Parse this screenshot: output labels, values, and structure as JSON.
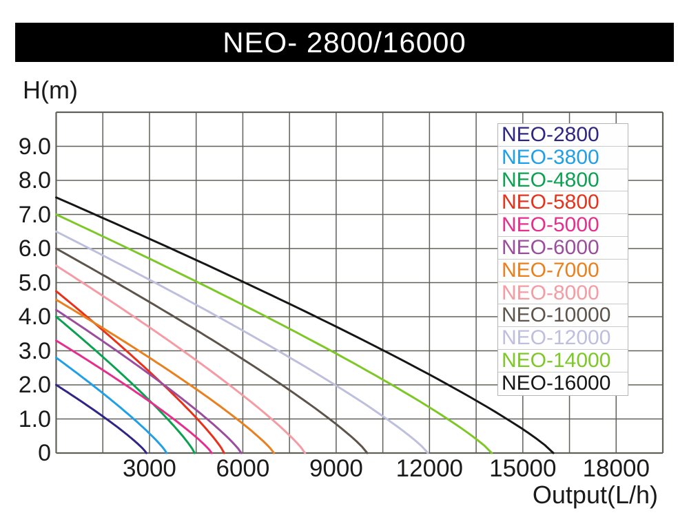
{
  "title": "NEO- 2800/16000",
  "chart_data": {
    "type": "line",
    "title": "NEO- 2800/16000",
    "xlabel": "Output(L/h)",
    "ylabel": "H(m)",
    "xlim": [
      0,
      19500
    ],
    "ylim": [
      0,
      10
    ],
    "grid": true,
    "x_grid_interval": 1500,
    "y_grid_interval": 1,
    "x_ticks": [
      {
        "value": 3000,
        "label": "3000"
      },
      {
        "value": 6000,
        "label": "6000"
      },
      {
        "value": 9000,
        "label": "9000"
      },
      {
        "value": 12000,
        "label": "12000"
      },
      {
        "value": 15000,
        "label": "15000"
      },
      {
        "value": 18000,
        "label": "18000"
      }
    ],
    "y_ticks": [
      {
        "value": 9,
        "label": "9.0"
      },
      {
        "value": 8,
        "label": "8.0"
      },
      {
        "value": 7,
        "label": "7.0"
      },
      {
        "value": 6,
        "label": "6.0"
      },
      {
        "value": 5,
        "label": "5.0"
      },
      {
        "value": 4,
        "label": "4.0"
      },
      {
        "value": 3,
        "label": "3.0"
      },
      {
        "value": 2,
        "label": "2.0"
      },
      {
        "value": 1,
        "label": "1.0"
      },
      {
        "value": 0,
        "label": "0"
      }
    ],
    "legend_position": "upper-right",
    "curve_model": "head_m = max_head_m * (1 - Q/max_output_lh)^droop_exponent",
    "droop_exponent": 0.85,
    "series": [
      {
        "name": "NEO-2800",
        "color": "#2e2585",
        "max_head_m": 2.0,
        "max_output_lh": 2900
      },
      {
        "name": "NEO-3800",
        "color": "#1f9fe8",
        "max_head_m": 2.8,
        "max_output_lh": 3550
      },
      {
        "name": "NEO-4800",
        "color": "#0aa150",
        "max_head_m": 4.0,
        "max_output_lh": 4450
      },
      {
        "name": "NEO-5800",
        "color": "#e93019",
        "max_head_m": 4.75,
        "max_output_lh": 5400
      },
      {
        "name": "NEO-5000",
        "color": "#e62e8d",
        "max_head_m": 3.3,
        "max_output_lh": 5000
      },
      {
        "name": "NEO-6000",
        "color": "#9b4d9d",
        "max_head_m": 4.2,
        "max_output_lh": 5950
      },
      {
        "name": "NEO-7000",
        "color": "#e9801d",
        "max_head_m": 4.5,
        "max_output_lh": 7000
      },
      {
        "name": "NEO-8000",
        "color": "#f49ba3",
        "max_head_m": 5.5,
        "max_output_lh": 8000
      },
      {
        "name": "NEO-10000",
        "color": "#5d544b",
        "max_head_m": 6.0,
        "max_output_lh": 10000
      },
      {
        "name": "NEO-12000",
        "color": "#bdbfdd",
        "max_head_m": 6.5,
        "max_output_lh": 11950
      },
      {
        "name": "NEO-14000",
        "color": "#7dc827",
        "max_head_m": 7.0,
        "max_output_lh": 14000
      },
      {
        "name": "NEO-16000",
        "color": "#161616",
        "max_head_m": 7.5,
        "max_output_lh": 15980
      }
    ],
    "colors": {
      "background": "#ffffff",
      "title_bar_bg": "#000000",
      "title_text": "#ffffff",
      "grid": "#60605a",
      "axis_text": "#1a1a1a",
      "legend_bg": "#ffffff",
      "legend_border": "#b4b4b4"
    }
  }
}
